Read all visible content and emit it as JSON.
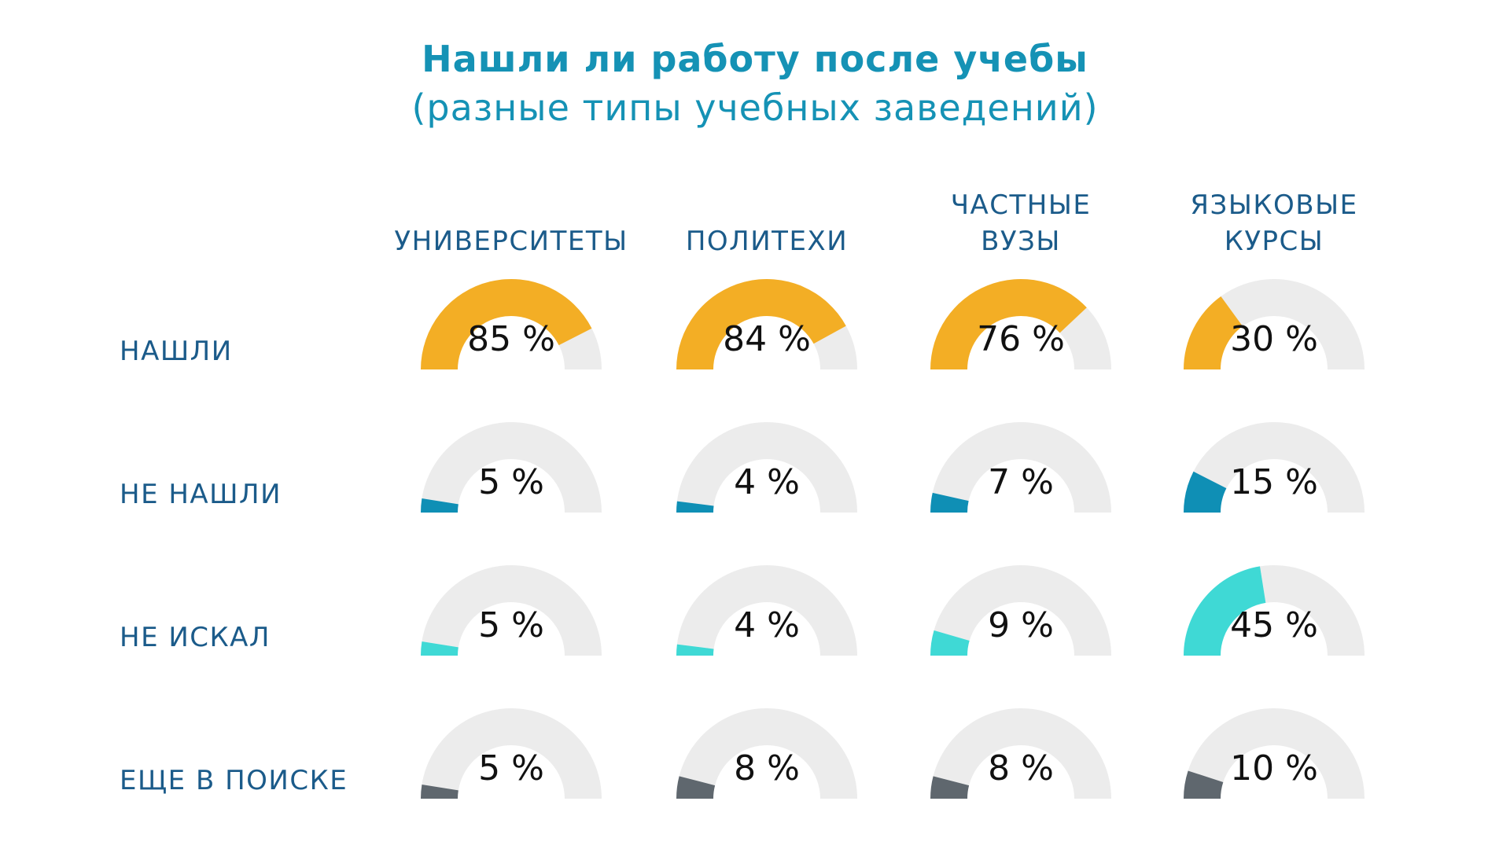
{
  "chart_data": {
    "type": "gauge-grid",
    "title": "Нашли ли работу после учебы",
    "subtitle": "(разные типы учебных заведений)",
    "columns": [
      [
        "УНИВЕРСИТЕТЫ"
      ],
      [
        "ПОЛИТЕХИ"
      ],
      [
        "ЧАСТНЫЕ",
        "ВУЗЫ"
      ],
      [
        "ЯЗЫКОВЫЕ",
        "КУРСЫ"
      ]
    ],
    "rows": [
      {
        "label": "НАШЛИ",
        "color": "#f3ae25",
        "values": [
          85,
          84,
          76,
          30
        ]
      },
      {
        "label": "НЕ НАШЛИ",
        "color": "#0f8fb5",
        "values": [
          5,
          4,
          7,
          15
        ]
      },
      {
        "label": "НЕ ИСКАЛ",
        "color": "#3fd9d5",
        "values": [
          5,
          4,
          9,
          45
        ]
      },
      {
        "label": "ЕЩЕ В ПОИСКЕ",
        "color": "#5f676e",
        "values": [
          5,
          8,
          8,
          10
        ]
      }
    ],
    "value_suffix": " %",
    "range": [
      0,
      100
    ]
  },
  "colors": {
    "title": "#1592b5",
    "labels": "#1b5b8a",
    "track": "#ececec",
    "value_text": "#111111"
  }
}
